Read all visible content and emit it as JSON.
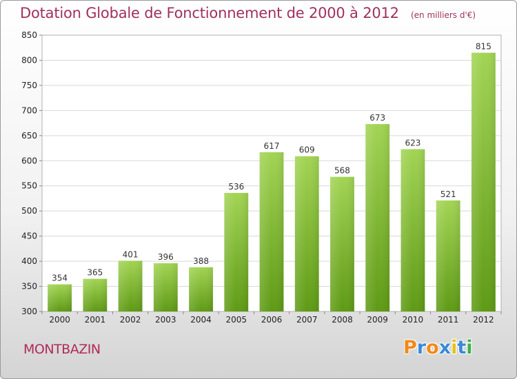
{
  "chart_data": {
    "type": "bar",
    "title": "Dotation Globale de Fonctionnement de 2000 à 2012",
    "unit": "(en milliers d'€)",
    "xlabel": "",
    "ylabel": "",
    "categories": [
      "2000",
      "2001",
      "2002",
      "2003",
      "2004",
      "2005",
      "2006",
      "2007",
      "2008",
      "2009",
      "2010",
      "2011",
      "2012"
    ],
    "values": [
      354,
      365,
      401,
      396,
      388,
      536,
      617,
      609,
      568,
      673,
      623,
      521,
      815
    ],
    "ylim": [
      300,
      850
    ],
    "yticks": [
      300,
      350,
      400,
      450,
      500,
      550,
      600,
      650,
      700,
      750,
      800,
      850
    ],
    "grid": true,
    "bar_color": "#8cc43c"
  },
  "footer": {
    "town": "MONTBAZIN",
    "logo_letters": [
      "P",
      "r",
      "o",
      "x",
      "i",
      "t",
      "i"
    ],
    "logo_colors": [
      "#f08a1c",
      "#3a8ad6",
      "#f08a1c",
      "#3a8ad6",
      "#e6c21a",
      "#3a8ad6",
      "#3cb24a"
    ]
  }
}
